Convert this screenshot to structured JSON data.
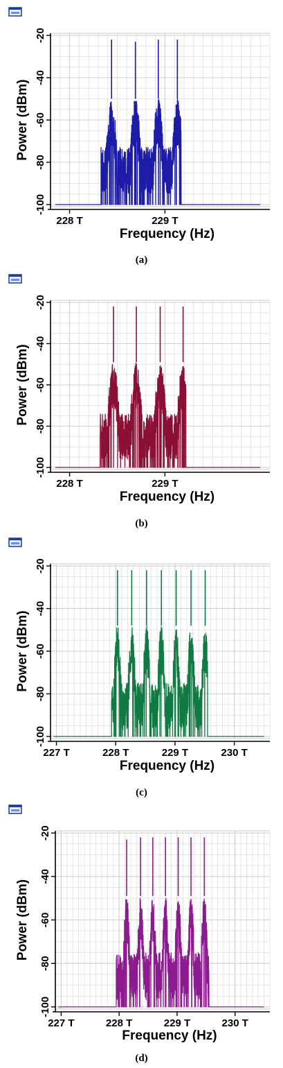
{
  "chart_data": [
    {
      "panel": "a",
      "caption": "(a)",
      "type": "line",
      "color": "#1c1ca8",
      "xlabel": "Frequency (Hz)",
      "ylabel": "Power (dBm)",
      "x_unit_note": "THz",
      "xlim": [
        227.8,
        230.1
      ],
      "ylim": [
        -101,
        -19
      ],
      "x_ticks": [
        228,
        229
      ],
      "x_tick_labels": [
        "228 T",
        "229 T"
      ],
      "y_ticks": [
        -20,
        -40,
        -60,
        -80,
        -100
      ],
      "y_tick_labels": [
        "-20",
        "-40",
        "-60",
        "-80",
        "-100"
      ],
      "grid": true,
      "noise_floor": -100,
      "band": [
        228.33,
        229.17
      ],
      "carriers": [
        {
          "x": 228.44,
          "peak": -22
        },
        {
          "x": 228.69,
          "peak": -23
        },
        {
          "x": 228.93,
          "peak": -22
        },
        {
          "x": 229.13,
          "peak": -22
        }
      ],
      "sideband_level": -50,
      "band_floor": -73
    },
    {
      "panel": "b",
      "caption": "(b)",
      "type": "line",
      "color": "#8c1035",
      "xlabel": "Frequency (Hz)",
      "ylabel": "Power (dBm)",
      "x_unit_note": "THz",
      "xlim": [
        227.8,
        230.1
      ],
      "ylim": [
        -101,
        -19
      ],
      "x_ticks": [
        228,
        229
      ],
      "x_tick_labels": [
        "228 T",
        "229 T"
      ],
      "y_ticks": [
        -20,
        -40,
        -60,
        -80,
        -100
      ],
      "y_tick_labels": [
        "-20",
        "-40",
        "-60",
        "-80",
        "-100"
      ],
      "grid": true,
      "noise_floor": -100,
      "band": [
        228.32,
        229.22
      ],
      "carriers": [
        {
          "x": 228.46,
          "peak": -22
        },
        {
          "x": 228.7,
          "peak": -22
        },
        {
          "x": 228.95,
          "peak": -22
        },
        {
          "x": 229.19,
          "peak": -22
        }
      ],
      "sideband_level": -49,
      "band_floor": -74
    },
    {
      "panel": "c",
      "caption": "(c)",
      "type": "line",
      "color": "#0f7a42",
      "xlabel": "Frequency (Hz)",
      "ylabel": "Power (dBm)",
      "x_unit_note": "THz",
      "xlim": [
        226.9,
        230.6
      ],
      "ylim": [
        -101,
        -19
      ],
      "x_ticks": [
        227,
        228,
        229,
        230
      ],
      "x_tick_labels": [
        "227 T",
        "228 T",
        "229 T",
        "230 T"
      ],
      "y_ticks": [
        -20,
        -40,
        -60,
        -80,
        -100
      ],
      "y_tick_labels": [
        "-20",
        "-40",
        "-60",
        "-80",
        "-100"
      ],
      "grid": true,
      "noise_floor": -100,
      "band": [
        227.93,
        229.55
      ],
      "carriers": [
        {
          "x": 228.03,
          "peak": -22
        },
        {
          "x": 228.27,
          "peak": -22
        },
        {
          "x": 228.52,
          "peak": -22
        },
        {
          "x": 228.77,
          "peak": -22
        },
        {
          "x": 229.02,
          "peak": -22
        },
        {
          "x": 229.27,
          "peak": -22
        },
        {
          "x": 229.51,
          "peak": -22
        }
      ],
      "sideband_level": -48,
      "band_floor": -75
    },
    {
      "panel": "d",
      "caption": "(d)",
      "type": "line",
      "color": "#8b1b8e",
      "xlabel": "Frequency (Hz)",
      "ylabel": "Power (dBm)",
      "x_unit_note": "THz",
      "xlim": [
        226.9,
        230.6
      ],
      "ylim": [
        -101,
        -19
      ],
      "x_ticks": [
        227,
        228,
        229,
        230
      ],
      "x_tick_labels": [
        "227 T",
        "228 T",
        "229 T",
        "230 T"
      ],
      "y_ticks": [
        -20,
        -40,
        -60,
        -80,
        -100
      ],
      "y_tick_labels": [
        "-20",
        "-40",
        "-60",
        "-80",
        "-100"
      ],
      "grid": true,
      "noise_floor": -100,
      "band": [
        227.95,
        229.55
      ],
      "carriers": [
        {
          "x": 228.13,
          "peak": -23
        },
        {
          "x": 228.37,
          "peak": -22
        },
        {
          "x": 228.58,
          "peak": -22
        },
        {
          "x": 228.8,
          "peak": -22
        },
        {
          "x": 229.02,
          "peak": -22
        },
        {
          "x": 229.24,
          "peak": -22
        },
        {
          "x": 229.47,
          "peak": -22
        }
      ],
      "sideband_level": -49,
      "band_floor": -75
    }
  ]
}
